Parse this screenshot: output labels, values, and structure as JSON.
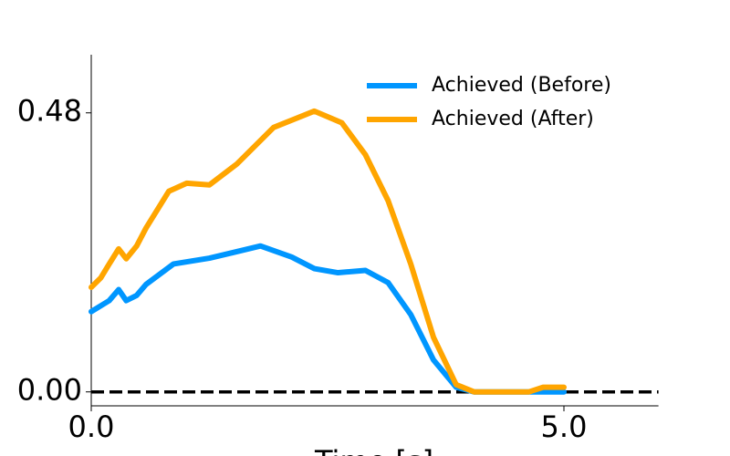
{
  "chart_data": {
    "type": "line",
    "x_label": "Time [s]",
    "xlim": [
      0,
      6
    ],
    "ylim": [
      -0.024,
      0.58
    ],
    "xticks": [
      {
        "value": 0,
        "label": "0.0"
      },
      {
        "value": 5,
        "label": "5.0"
      }
    ],
    "yticks": [
      {
        "value": 0,
        "label": "0.00"
      },
      {
        "value": 0.48,
        "label": "0.48"
      }
    ],
    "reference_line": 0,
    "legend": "upper right",
    "series": [
      {
        "name": "Achieved (Before)",
        "color": "#0096ff",
        "x": [
          0,
          0.19,
          0.29,
          0.37,
          0.48,
          0.58,
          0.87,
          1.25,
          1.79,
          2.12,
          2.36,
          2.61,
          2.9,
          3.14,
          3.38,
          3.62,
          3.86,
          4.05,
          5.0
        ],
        "values": [
          0.138,
          0.157,
          0.176,
          0.157,
          0.166,
          0.185,
          0.22,
          0.23,
          0.251,
          0.232,
          0.212,
          0.205,
          0.209,
          0.188,
          0.133,
          0.055,
          0.008,
          0,
          0
        ]
      },
      {
        "name": "Achieved (After)",
        "color": "#ffa500",
        "x": [
          0,
          0.1,
          0.19,
          0.29,
          0.37,
          0.48,
          0.58,
          0.82,
          1.01,
          1.25,
          1.54,
          1.93,
          2.36,
          2.65,
          2.9,
          3.14,
          3.38,
          3.62,
          3.86,
          4.05,
          4.63,
          4.78,
          5.0
        ],
        "values": [
          0.18,
          0.196,
          0.22,
          0.246,
          0.229,
          0.251,
          0.282,
          0.345,
          0.359,
          0.356,
          0.392,
          0.455,
          0.483,
          0.463,
          0.408,
          0.329,
          0.22,
          0.094,
          0.0125,
          0,
          0,
          0.008,
          0.008
        ]
      }
    ]
  }
}
